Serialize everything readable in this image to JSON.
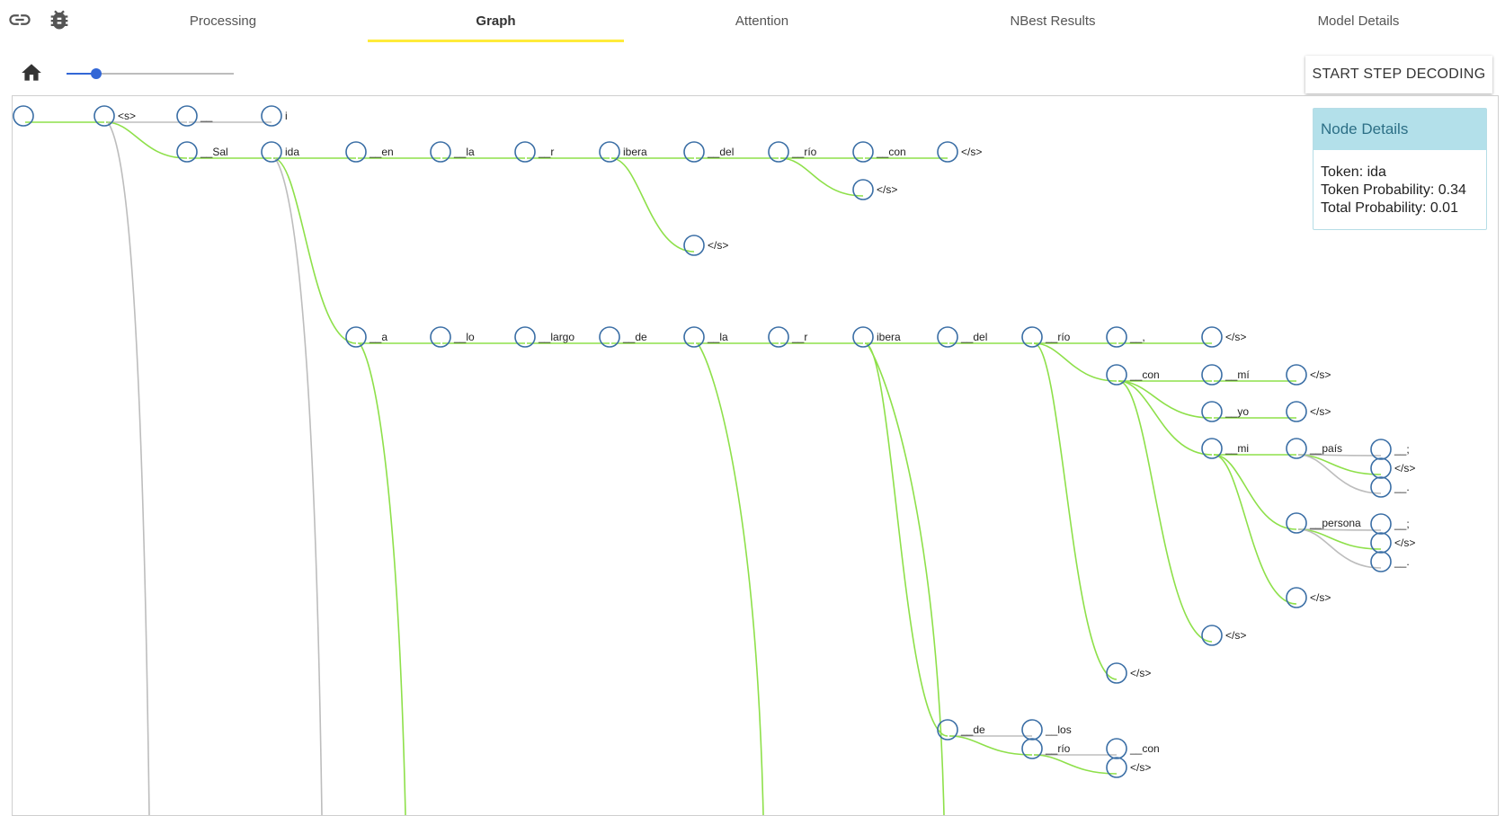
{
  "header": {
    "tabs": [
      {
        "label": "Processing"
      },
      {
        "label": "Graph"
      },
      {
        "label": "Attention"
      },
      {
        "label": "NBest Results"
      },
      {
        "label": "Model Details"
      }
    ],
    "active_tab": "Graph",
    "icons": {
      "share": "link-icon",
      "debug": "bug-icon"
    }
  },
  "toolbar": {
    "home_icon": "home-icon",
    "slider_value": 0.18,
    "start_button_label": "START STEP DECODING"
  },
  "node_details": {
    "title": "Node Details",
    "token_line": "Token: ida",
    "token_prob_line": "Token Probability: 0.34",
    "total_prob_line": "Total Probability: 0.01"
  },
  "graph": {
    "nodes": [
      {
        "id": "root",
        "label": ""
      },
      {
        "id": "s",
        "label": "<s>"
      },
      {
        "id": "u1",
        "label": "__"
      },
      {
        "id": "i",
        "label": "i"
      },
      {
        "id": "sal",
        "label": "__Sal"
      },
      {
        "id": "ida",
        "label": "ida"
      },
      {
        "id": "en",
        "label": "__en"
      },
      {
        "id": "la1",
        "label": "__la"
      },
      {
        "id": "r1",
        "label": "__r"
      },
      {
        "id": "ibera1",
        "label": "ibera"
      },
      {
        "id": "del1",
        "label": "__del"
      },
      {
        "id": "rio1",
        "label": "__río"
      },
      {
        "id": "con1",
        "label": "__con"
      },
      {
        "id": "e1",
        "label": "</s>"
      },
      {
        "id": "e2",
        "label": "</s>"
      },
      {
        "id": "e3",
        "label": "</s>"
      },
      {
        "id": "a",
        "label": "__a"
      },
      {
        "id": "lo",
        "label": "__lo"
      },
      {
        "id": "largo",
        "label": "__largo"
      },
      {
        "id": "de1",
        "label": "__de"
      },
      {
        "id": "la2",
        "label": "__la"
      },
      {
        "id": "r2",
        "label": "__r"
      },
      {
        "id": "ibera2",
        "label": "ibera"
      },
      {
        "id": "del2",
        "label": "__del"
      },
      {
        "id": "rio2",
        "label": "__río"
      },
      {
        "id": "comma",
        "label": "__,"
      },
      {
        "id": "e4",
        "label": "</s>"
      },
      {
        "id": "con2",
        "label": "__con"
      },
      {
        "id": "mi2",
        "label": "__mí"
      },
      {
        "id": "e5",
        "label": "</s>"
      },
      {
        "id": "yo",
        "label": "__yo"
      },
      {
        "id": "e6",
        "label": "</s>"
      },
      {
        "id": "mi",
        "label": "__mi"
      },
      {
        "id": "pais",
        "label": "__país"
      },
      {
        "id": "pa1",
        "label": "__;"
      },
      {
        "id": "pa2",
        "label": "</s>"
      },
      {
        "id": "pa3",
        "label": "__."
      },
      {
        "id": "persona",
        "label": "__persona"
      },
      {
        "id": "pe1",
        "label": "__;"
      },
      {
        "id": "pe2",
        "label": "</s>"
      },
      {
        "id": "pe3",
        "label": "__."
      },
      {
        "id": "e7",
        "label": "</s>"
      },
      {
        "id": "e8",
        "label": "</s>"
      },
      {
        "id": "e9",
        "label": "</s>"
      },
      {
        "id": "de2",
        "label": "__de"
      },
      {
        "id": "los",
        "label": "__los"
      },
      {
        "id": "rio3",
        "label": "__río"
      },
      {
        "id": "con3",
        "label": "__con"
      },
      {
        "id": "e10",
        "label": "</s>"
      }
    ],
    "edges": [
      {
        "from": "root",
        "to": "s",
        "best": true
      },
      {
        "from": "s",
        "to": "u1",
        "best": false
      },
      {
        "from": "u1",
        "to": "i",
        "best": false
      },
      {
        "from": "s",
        "to": "sal",
        "best": true
      },
      {
        "from": "sal",
        "to": "ida",
        "best": true
      },
      {
        "from": "ida",
        "to": "en",
        "best": true
      },
      {
        "from": "en",
        "to": "la1",
        "best": true
      },
      {
        "from": "la1",
        "to": "r1",
        "best": true
      },
      {
        "from": "r1",
        "to": "ibera1",
        "best": true
      },
      {
        "from": "ibera1",
        "to": "del1",
        "best": true
      },
      {
        "from": "del1",
        "to": "rio1",
        "best": true
      },
      {
        "from": "rio1",
        "to": "con1",
        "best": true
      },
      {
        "from": "con1",
        "to": "e1",
        "best": true
      },
      {
        "from": "rio1",
        "to": "e2",
        "best": true
      },
      {
        "from": "ibera1",
        "to": "e3",
        "best": true
      },
      {
        "from": "ida",
        "to": "a",
        "best": true
      },
      {
        "from": "a",
        "to": "lo",
        "best": true
      },
      {
        "from": "lo",
        "to": "largo",
        "best": true
      },
      {
        "from": "largo",
        "to": "de1",
        "best": true
      },
      {
        "from": "de1",
        "to": "la2",
        "best": true
      },
      {
        "from": "la2",
        "to": "r2",
        "best": true
      },
      {
        "from": "r2",
        "to": "ibera2",
        "best": true
      },
      {
        "from": "ibera2",
        "to": "del2",
        "best": true
      },
      {
        "from": "del2",
        "to": "rio2",
        "best": true
      },
      {
        "from": "rio2",
        "to": "comma",
        "best": true
      },
      {
        "from": "comma",
        "to": "e4",
        "best": true
      },
      {
        "from": "rio2",
        "to": "con2",
        "best": true
      },
      {
        "from": "con2",
        "to": "mi2",
        "best": true
      },
      {
        "from": "mi2",
        "to": "e5",
        "best": true
      },
      {
        "from": "con2",
        "to": "yo",
        "best": true
      },
      {
        "from": "yo",
        "to": "e6",
        "best": true
      },
      {
        "from": "con2",
        "to": "mi",
        "best": true
      },
      {
        "from": "mi",
        "to": "pais",
        "best": true
      },
      {
        "from": "pais",
        "to": "pa1",
        "best": false
      },
      {
        "from": "pais",
        "to": "pa2",
        "best": true
      },
      {
        "from": "pais",
        "to": "pa3",
        "best": false
      },
      {
        "from": "mi",
        "to": "persona",
        "best": true
      },
      {
        "from": "persona",
        "to": "pe1",
        "best": false
      },
      {
        "from": "persona",
        "to": "pe2",
        "best": true
      },
      {
        "from": "persona",
        "to": "pe3",
        "best": false
      },
      {
        "from": "mi",
        "to": "e7",
        "best": true
      },
      {
        "from": "con2",
        "to": "e8",
        "best": true
      },
      {
        "from": "rio2",
        "to": "e9",
        "best": true
      },
      {
        "from": "ibera2",
        "to": "de2",
        "best": true
      },
      {
        "from": "de2",
        "to": "los",
        "best": false
      },
      {
        "from": "de2",
        "to": "rio3",
        "best": true
      },
      {
        "from": "rio3",
        "to": "con3",
        "best": false
      },
      {
        "from": "rio3",
        "to": "e10",
        "best": true
      }
    ],
    "offscreen_edges": [
      {
        "from": "s",
        "best": false
      },
      {
        "from": "ida",
        "best": false
      },
      {
        "from": "a",
        "best": true
      },
      {
        "from": "la2",
        "best": true
      },
      {
        "from": "ibera2",
        "best": true
      }
    ],
    "colors": {
      "best": "#8ee04a",
      "other": "#bdbdbd",
      "node": "#3a6ea5"
    }
  }
}
